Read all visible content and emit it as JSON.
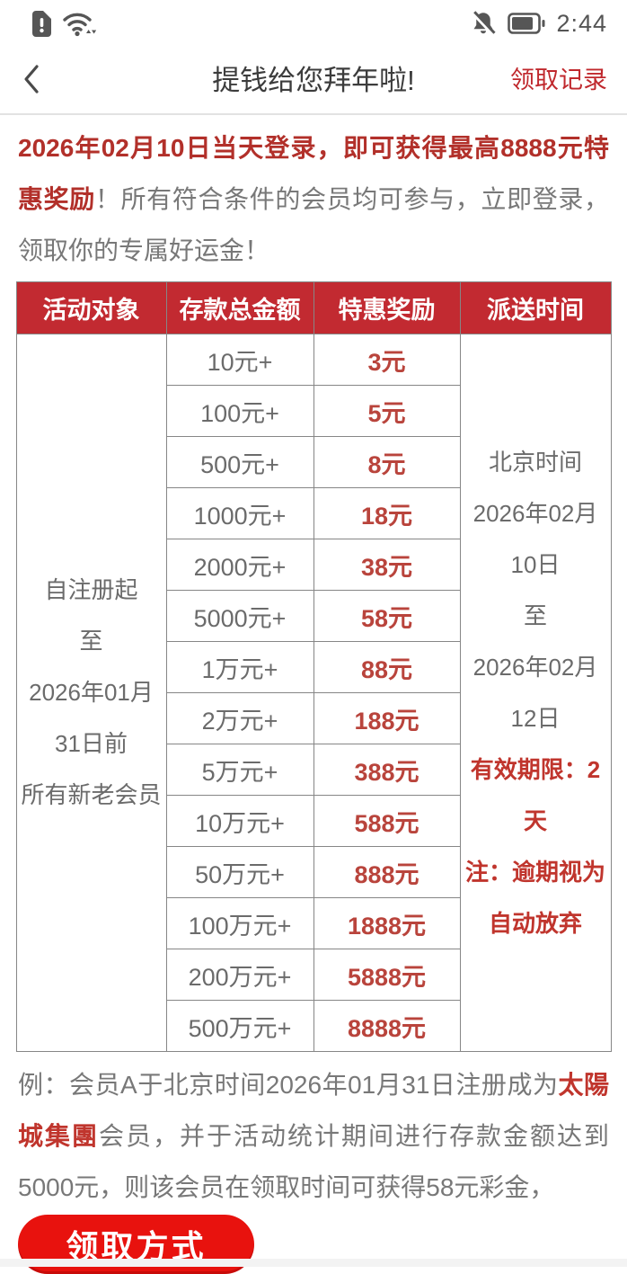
{
  "status_bar": {
    "time": "2:44"
  },
  "nav": {
    "title": "提钱给您拜年啦!",
    "records_link": "领取记录"
  },
  "intro": {
    "highlight": "2026年02月10日当天登录，即可获得最高8888元特惠奖励",
    "rest": "！所有符合条件的会员均可参与，立即登录，领取你的专属好运金！"
  },
  "table": {
    "headers": [
      "活动对象",
      "存款总金额",
      "特惠奖励",
      "派送时间"
    ],
    "audience_lines": [
      "自注册起",
      "至",
      "2026年01月",
      "31日前",
      "所有新老会员"
    ],
    "rows": [
      {
        "deposit": "10元+",
        "bonus": "3元"
      },
      {
        "deposit": "100元+",
        "bonus": "5元"
      },
      {
        "deposit": "500元+",
        "bonus": "8元"
      },
      {
        "deposit": "1000元+",
        "bonus": "18元"
      },
      {
        "deposit": "2000元+",
        "bonus": "38元"
      },
      {
        "deposit": "5000元+",
        "bonus": "58元"
      },
      {
        "deposit": "1万元+",
        "bonus": "88元"
      },
      {
        "deposit": "2万元+",
        "bonus": "188元"
      },
      {
        "deposit": "5万元+",
        "bonus": "388元"
      },
      {
        "deposit": "10万元+",
        "bonus": "588元"
      },
      {
        "deposit": "50万元+",
        "bonus": "888元"
      },
      {
        "deposit": "100万元+",
        "bonus": "1888元"
      },
      {
        "deposit": "200万元+",
        "bonus": "5888元"
      },
      {
        "deposit": "500万元+",
        "bonus": "8888元"
      }
    ],
    "delivery": {
      "normal_lines": [
        "北京时间",
        "2026年02月",
        "10日",
        "至",
        "2026年02月",
        "12日"
      ],
      "highlight_lines": [
        "有效期限：2",
        "天",
        "注：逾期视为",
        "自动放弃"
      ]
    }
  },
  "example": {
    "prefix": "例：会员A于北京时间2026年01月31日注册成为",
    "brand": "太陽城集團",
    "suffix": "会员，并于活动统计期间进行存款金额达到5000元，则该会员在领取时间可获得58元彩金，"
  },
  "claim_button_label": "领取方式",
  "colors": {
    "table_header_bg": "#c22a31",
    "intro_red": "#b2302a",
    "bonus_red": "#b9443c",
    "delivery_red": "#c0352d",
    "link_red": "#c0282d",
    "button_red": "#e8120e"
  }
}
